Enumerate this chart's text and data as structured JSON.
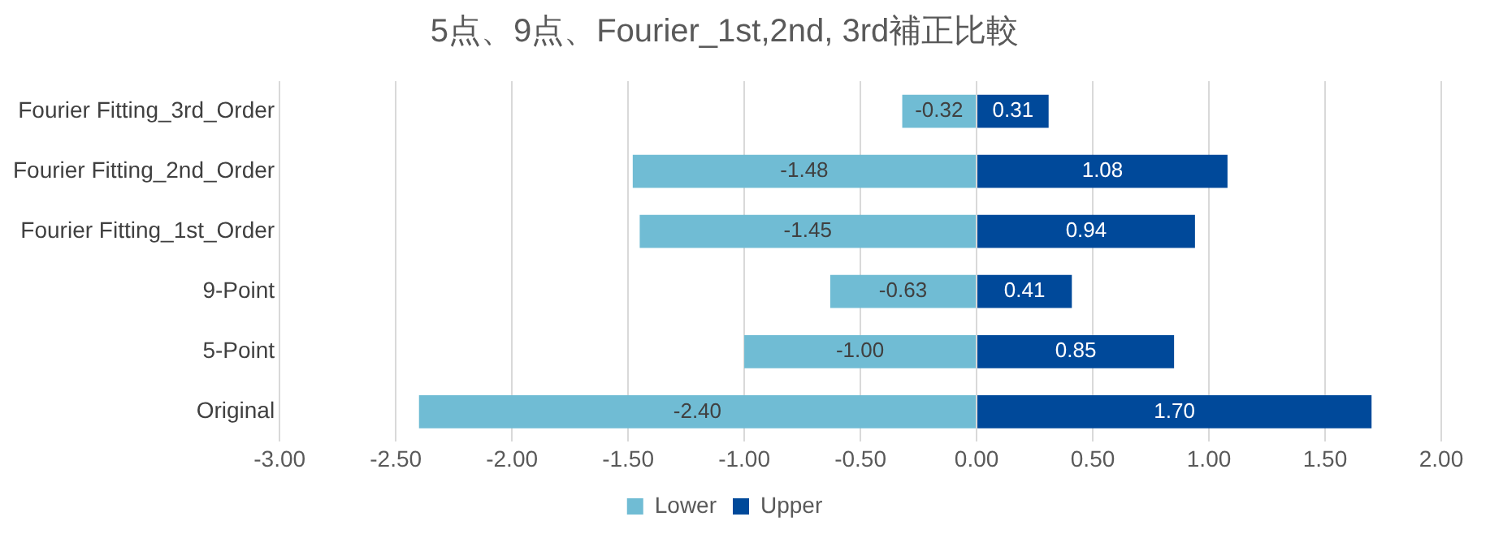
{
  "chart_data": {
    "type": "bar",
    "title": "5点、9点、Fourier_1st,2nd, 3rd補正比較",
    "orientation": "horizontal",
    "stacked": true,
    "categories": [
      "Fourier Fitting_3rd_Order",
      "Fourier Fitting_2nd_Order",
      "Fourier Fitting_1st_Order",
      "9-Point",
      "5-Point",
      "Original"
    ],
    "series": [
      {
        "name": "Lower",
        "color": "#70bcd4",
        "values": [
          -0.32,
          -1.48,
          -1.45,
          -0.63,
          -1.0,
          -2.4
        ],
        "value_labels": [
          "-0.32",
          "-1.48",
          "-1.45",
          "-0.63",
          "-1.00",
          "-2.40"
        ]
      },
      {
        "name": "Upper",
        "color": "#00499a",
        "values": [
          0.31,
          1.08,
          0.94,
          0.41,
          0.85,
          1.7
        ],
        "value_labels": [
          "0.31",
          "1.08",
          "0.94",
          "0.41",
          "0.85",
          "1.70"
        ]
      }
    ],
    "xlim": [
      -3,
      2
    ],
    "xticks": [
      {
        "value": -3,
        "label": "-3.00"
      },
      {
        "value": -2.5,
        "label": "-2.50"
      },
      {
        "value": -2,
        "label": "-2.00"
      },
      {
        "value": -1.5,
        "label": "-1.50"
      },
      {
        "value": -1,
        "label": "-1.00"
      },
      {
        "value": -0.5,
        "label": "-0.50"
      },
      {
        "value": 0,
        "label": "0.00"
      },
      {
        "value": 0.5,
        "label": "0.50"
      },
      {
        "value": 1,
        "label": "1.00"
      },
      {
        "value": 1.5,
        "label": "1.50"
      },
      {
        "value": 2,
        "label": "2.00"
      }
    ],
    "grid": "x",
    "legend": "bottom"
  }
}
